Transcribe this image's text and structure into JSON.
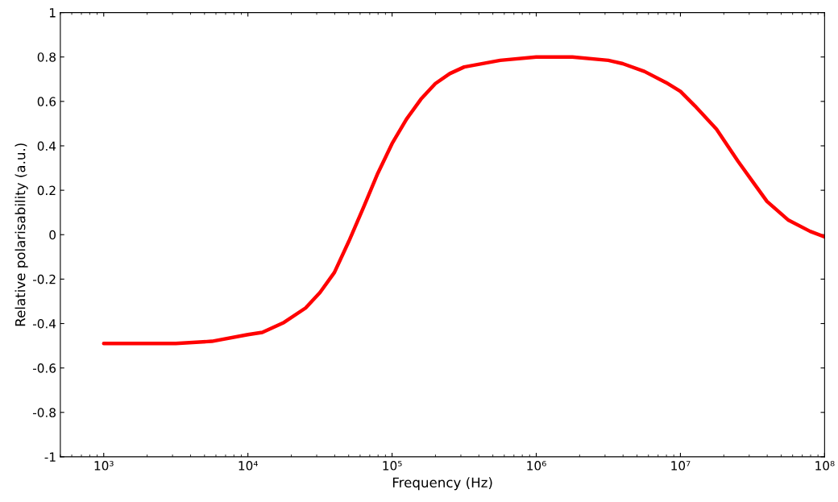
{
  "chart_data": {
    "type": "line",
    "xlabel": "Frequency (Hz)",
    "ylabel": "Relative polarisability (a.u.)",
    "log": "x",
    "grid": false,
    "marker": "none",
    "line_style": "solid",
    "xlim": [
      500,
      100000000
    ],
    "ylim": [
      -1,
      1
    ],
    "xticks": [
      {
        "value": 1000,
        "label": "10³"
      },
      {
        "value": 10000,
        "label": "10⁴"
      },
      {
        "value": 100000,
        "label": "10⁵"
      },
      {
        "value": 1000000,
        "label": "10⁶"
      },
      {
        "value": 10000000,
        "label": "10⁷"
      },
      {
        "value": 100000000,
        "label": "10⁸"
      }
    ],
    "yticks": [
      -1,
      -0.8,
      -0.6,
      -0.4,
      -0.2,
      0,
      0.2,
      0.4,
      0.6,
      0.8,
      1
    ],
    "x": [
      1000,
      3162,
      5623,
      10000,
      12589,
      17783,
      25119,
      31623,
      39811,
      50119,
      63096,
      79433,
      100000,
      125893,
      158489,
      199526,
      251189,
      316228,
      562341,
      1000000,
      1778279,
      3162278,
      3981072,
      5623413,
      7943282,
      10000000,
      12589254,
      17782794,
      25118864,
      31622777,
      39810717,
      56234133,
      79432823,
      100000000
    ],
    "series": [
      {
        "color": "#ff0000",
        "values": [
          -0.49,
          -0.49,
          -0.48,
          -0.45,
          -0.44,
          -0.395,
          -0.33,
          -0.26,
          -0.17,
          -0.03,
          0.12,
          0.275,
          0.41,
          0.52,
          0.61,
          0.68,
          0.725,
          0.755,
          0.785,
          0.8,
          0.8,
          0.785,
          0.77,
          0.735,
          0.685,
          0.645,
          0.58,
          0.475,
          0.33,
          0.24,
          0.15,
          0.065,
          0.015,
          -0.01
        ]
      }
    ]
  }
}
